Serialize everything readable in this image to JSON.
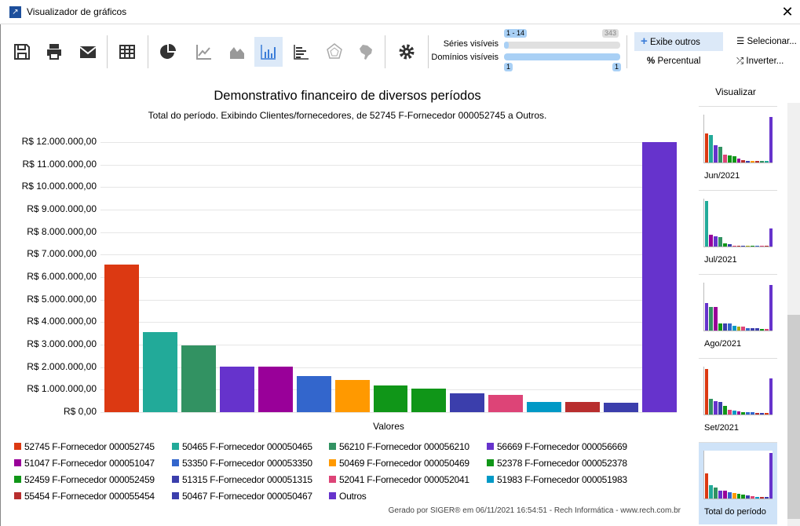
{
  "window": {
    "title": "Visualizador de gráficos",
    "close_icon": "close-icon"
  },
  "toolbar": {
    "buttons": [
      {
        "name": "save",
        "icon": "floppy-disk-icon"
      },
      {
        "name": "print",
        "icon": "printer-icon"
      },
      {
        "name": "email",
        "icon": "envelope-icon"
      },
      {
        "name": "table",
        "icon": "table-grid-icon"
      },
      {
        "name": "pie",
        "icon": "pie-chart-icon"
      },
      {
        "name": "line",
        "icon": "line-chart-icon"
      },
      {
        "name": "area",
        "icon": "area-chart-icon"
      },
      {
        "name": "column",
        "icon": "column-chart-icon",
        "selected": true
      },
      {
        "name": "bar",
        "icon": "horizontal-bar-chart-icon"
      },
      {
        "name": "radar",
        "icon": "radar-chart-icon"
      },
      {
        "name": "map",
        "icon": "brazil-map-icon"
      },
      {
        "name": "settings",
        "icon": "gear-icon"
      }
    ],
    "series_label": "Séries visíveis",
    "series_range": "1 - 14",
    "series_total": "343",
    "domains_label": "Domínios visíveis",
    "domains_min": "1",
    "domains_max": "1",
    "show_others": "Exibe outros",
    "percent": "Percentual",
    "select": "Selecionar...",
    "invert": "Inverter..."
  },
  "chart_data": {
    "type": "bar",
    "title": "Demonstrativo financeiro de diversos períodos",
    "subtitle": "Total do período. Exibindo Clientes/fornecedores, de 52745 F-Fornecedor 000052745 a Outros.",
    "xlabel": "Valores",
    "ylabel": "",
    "ylim": [
      0,
      12000000
    ],
    "yticks": [
      "R$ 0,00",
      "R$ 1.000.000,00",
      "R$ 2.000.000,00",
      "R$ 3.000.000,00",
      "R$ 4.000.000,00",
      "R$ 5.000.000,00",
      "R$ 6.000.000,00",
      "R$ 7.000.000,00",
      "R$ 8.000.000,00",
      "R$ 9.000.000,00",
      "R$ 10.000.000,00",
      "R$ 11.000.000,00",
      "R$ 12.000.000,00"
    ],
    "grid": true,
    "legend": "bottom",
    "series": [
      {
        "name": "52745 F-Fornecedor 000052745",
        "value": 6560000,
        "color": "#dc3912"
      },
      {
        "name": "50465 F-Fornecedor 000050465",
        "value": 3560000,
        "color": "#22aa99"
      },
      {
        "name": "56210 F-Fornecedor 000056210",
        "value": 2960000,
        "color": "#329262"
      },
      {
        "name": "56669 F-Fornecedor 000056669",
        "value": 2020000,
        "color": "#6633cc"
      },
      {
        "name": "51047 F-Fornecedor 000051047",
        "value": 2020000,
        "color": "#990099"
      },
      {
        "name": "53350 F-Fornecedor 000053350",
        "value": 1600000,
        "color": "#3366cc"
      },
      {
        "name": "50469 F-Fornecedor 000050469",
        "value": 1430000,
        "color": "#ff9900"
      },
      {
        "name": "52378 F-Fornecedor 000052378",
        "value": 1190000,
        "color": "#109618"
      },
      {
        "name": "52459 F-Fornecedor 000052459",
        "value": 1050000,
        "color": "#109618"
      },
      {
        "name": "51315 F-Fornecedor 000051315",
        "value": 840000,
        "color": "#3b3eac"
      },
      {
        "name": "52041 F-Fornecedor 000052041",
        "value": 770000,
        "color": "#dd4477"
      },
      {
        "name": "51983 F-Fornecedor 000051983",
        "value": 450000,
        "color": "#0099c6"
      },
      {
        "name": "55454 F-Fornecedor 000055454",
        "value": 450000,
        "color": "#b82e2e"
      },
      {
        "name": "50467 F-Fornecedor 000050467",
        "value": 420000,
        "color": "#3b3eac"
      },
      {
        "name": "Outros",
        "value": 12000000,
        "color": "#6633cc"
      }
    ]
  },
  "footer": "Gerado por SIGER® em 06/11/2021 16:54:51 - Rech Informática - www.rech.com.br",
  "sidebar": {
    "title": "Visualizar",
    "thumbnails": [
      {
        "label": "Jun/2021",
        "bars": [
          0.64,
          0.6,
          0.38,
          0.34,
          0.17,
          0.16,
          0.14,
          0.09,
          0.05,
          0.04,
          0.04,
          0.04,
          0.04,
          0.04,
          1
        ],
        "colors": [
          "#dc3912",
          "#22aa99",
          "#6633cc",
          "#329262",
          "#dd4477",
          "#109618",
          "#109618",
          "#990099",
          "#b82e2e",
          "#3b3eac",
          "#ff9900",
          "#b82e2e",
          "#329262",
          "#22aa99",
          "#6633cc"
        ]
      },
      {
        "label": "Jul/2021",
        "bars": [
          1,
          0.26,
          0.22,
          0.2,
          0.07,
          0.05,
          0.02,
          0.01,
          0.01,
          0.01,
          0.01,
          0.01,
          0.01,
          0.01,
          0.39
        ],
        "colors": [
          "#22aa99",
          "#990099",
          "#6633cc",
          "#329262",
          "#109618",
          "#3b3eac",
          "#dd4477",
          "#b82e2e",
          "#3b3eac",
          "#aaaa11",
          "#109618",
          "#3366cc",
          "#dd4477",
          "#b82e2e",
          "#6633cc"
        ]
      },
      {
        "label": "Ago/2021",
        "bars": [
          0.6,
          0.52,
          0.52,
          0.16,
          0.16,
          0.16,
          0.11,
          0.08,
          0.08,
          0.05,
          0.05,
          0.05,
          0.04,
          0.04,
          1
        ],
        "colors": [
          "#6633cc",
          "#329262",
          "#990099",
          "#109618",
          "#3b3eac",
          "#3366cc",
          "#0099c6",
          "#aaaa11",
          "#dd4477",
          "#3366cc",
          "#3b3eac",
          "#3b3eac",
          "#109618",
          "#dd4477",
          "#6633cc"
        ]
      },
      {
        "label": "Set/2021",
        "bars": [
          1,
          0.35,
          0.3,
          0.28,
          0.19,
          0.11,
          0.09,
          0.07,
          0.06,
          0.06,
          0.05,
          0.03,
          0.03,
          0.03,
          0.79
        ],
        "colors": [
          "#dc3912",
          "#329262",
          "#6633cc",
          "#3b3eac",
          "#109618",
          "#dd4477",
          "#0099c6",
          "#990099",
          "#109618",
          "#3366cc",
          "#3366cc",
          "#b82e2e",
          "#3b3eac",
          "#dc3912",
          "#6633cc"
        ]
      },
      {
        "label": "Total do período",
        "selected": true,
        "bars": [
          0.55,
          0.3,
          0.25,
          0.17,
          0.17,
          0.13,
          0.12,
          0.1,
          0.09,
          0.07,
          0.06,
          0.04,
          0.04,
          0.04,
          1
        ],
        "colors": [
          "#dc3912",
          "#22aa99",
          "#329262",
          "#6633cc",
          "#990099",
          "#3366cc",
          "#ff9900",
          "#109618",
          "#109618",
          "#3b3eac",
          "#dd4477",
          "#0099c6",
          "#b82e2e",
          "#3b3eac",
          "#6633cc"
        ]
      }
    ]
  }
}
